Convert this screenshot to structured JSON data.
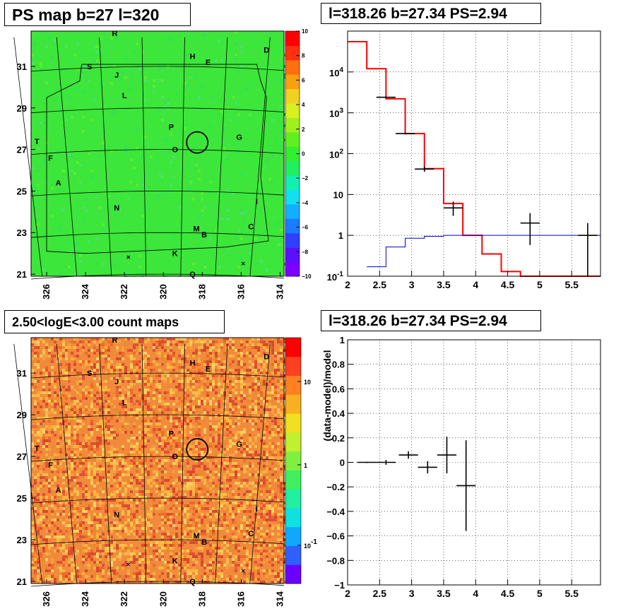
{
  "titles": {
    "top_left": "PS map b=27 l=320",
    "top_right": "l=318.26 b=27.34 PS=2.94",
    "bottom_left": "2.50<logE<3.00 count maps",
    "bottom_right": "l=318.26 b=27.34 PS=2.94"
  },
  "sources": [
    "R",
    "D",
    "H",
    "E",
    "S",
    "J",
    "L",
    "P",
    "G",
    "T",
    "O",
    "F",
    "A",
    "I",
    "N",
    "C",
    "M",
    "B",
    "K",
    "Q"
  ],
  "map_markers": [
    "×",
    "×"
  ],
  "chart_data": [
    {
      "type": "heatmap",
      "title": "PS map b=27 l=320",
      "x_ticks": [
        "326",
        "324",
        "322",
        "320",
        "318",
        "316",
        "314"
      ],
      "y_ticks": [
        "31",
        "29",
        "27",
        "25",
        "23",
        "21"
      ],
      "xlim": [
        326.8,
        313.8
      ],
      "ylim": [
        20.9,
        32.7
      ],
      "colorbar_ticks": [
        "10",
        "8",
        "6",
        "4",
        "2",
        "0",
        "−2",
        "−4",
        "−6",
        "−8",
        "−10"
      ],
      "colorbar_range": [
        -10,
        10
      ],
      "colorbar_colors": [
        "#7b00ff",
        "#5a10ff",
        "#3040ff",
        "#1a7cff",
        "#12b0ff",
        "#10e0f0",
        "#10f0b0",
        "#20f060",
        "#30f030",
        "#60f020",
        "#a0f020",
        "#d8f020",
        "#f0d020",
        "#f8a010",
        "#ff7010",
        "#ff3010",
        "#ff0000"
      ],
      "map_color": "#3de63a",
      "ps_circle": {
        "l": 318.26,
        "b": 27.34
      }
    },
    {
      "type": "line",
      "title": "l=318.26 b=27.34 PS=2.94",
      "x_ticks": [
        "2",
        "2.5",
        "3",
        "3.5",
        "4",
        "4.5",
        "5",
        "5.5"
      ],
      "y_ticks": [
        "10^-1",
        "1",
        "10",
        "10^2",
        "10^3",
        "10^4"
      ],
      "xlim": [
        2.0,
        5.95
      ],
      "ylim": [
        0.1,
        100000
      ],
      "ylog": true,
      "grid": true,
      "series": [
        {
          "color": "#ff0000",
          "bin_edges": [
            2.0,
            2.3,
            2.6,
            2.9,
            3.2,
            3.5,
            3.8,
            4.1,
            4.4,
            4.7,
            5.95
          ],
          "values": [
            55000,
            12000,
            2200,
            310,
            43,
            6,
            1,
            0.35,
            0.13,
            0.1
          ]
        },
        {
          "color": "#0000cc",
          "bin_edges": [
            2.3,
            2.6,
            2.9,
            3.2,
            3.5,
            3.8,
            5.95
          ],
          "values": [
            0.17,
            0.52,
            0.85,
            0.95,
            1.0,
            1.0
          ]
        }
      ],
      "points": [
        {
          "x": 2.6,
          "y": 2400,
          "xerr": 0.15,
          "ylo": 2300,
          "yhi": 2500
        },
        {
          "x": 2.9,
          "y": 310,
          "xerr": 0.15,
          "ylo": 295,
          "yhi": 325
        },
        {
          "x": 3.2,
          "y": 42,
          "xerr": 0.15,
          "ylo": 36,
          "yhi": 48
        },
        {
          "x": 3.65,
          "y": 4.7,
          "xerr": 0.15,
          "ylo": 3.0,
          "yhi": 6.7
        },
        {
          "x": 4.85,
          "y": 2.0,
          "xerr": 0.15,
          "ylo": 0.58,
          "yhi": 3.5
        },
        {
          "x": 5.75,
          "y": 1.0,
          "xerr": 0.15,
          "ylo": 0.1,
          "yhi": 2.0
        }
      ]
    },
    {
      "type": "heatmap",
      "title": "2.50<logE<3.00 count maps",
      "x_ticks": [
        "326",
        "324",
        "322",
        "320",
        "318",
        "316",
        "314"
      ],
      "y_ticks": [
        "31",
        "29",
        "27",
        "25",
        "23",
        "21"
      ],
      "xlim": [
        326.8,
        313.8
      ],
      "ylim": [
        20.9,
        32.7
      ],
      "colorbar_ticks": [
        "10",
        "1",
        "10^-1"
      ],
      "colorbar_colors": [
        "#6a00ff",
        "#3060ff",
        "#10a8ff",
        "#10e0e0",
        "#20f0a0",
        "#40f060",
        "#80f040",
        "#c0f030",
        "#f0e020",
        "#f8b020",
        "#ff8020",
        "#ff4020",
        "#ff0000"
      ],
      "map_color": "#f28a3c",
      "ps_circle": {
        "l": 318.26,
        "b": 27.34
      }
    },
    {
      "type": "scatter",
      "title": "l=318.26 b=27.34 PS=2.94",
      "ylabel": "(data-model)/model",
      "x_ticks": [
        "2",
        "2.5",
        "3",
        "3.5",
        "4",
        "4.5",
        "5",
        "5.5"
      ],
      "y_ticks": [
        "1",
        "0.8",
        "0.6",
        "0.4",
        "0.2",
        "0",
        "−0.2",
        "−0.4",
        "−0.6",
        "−0.8",
        "−1"
      ],
      "xlim": [
        2.0,
        5.95
      ],
      "ylim": [
        -1,
        1
      ],
      "grid": true,
      "points": [
        {
          "x": 2.3,
          "y": 0.0,
          "xerr": 0.15,
          "yerr": 0.005
        },
        {
          "x": 2.6,
          "y": 0.0,
          "xerr": 0.15,
          "yerr": 0.02
        },
        {
          "x": 2.95,
          "y": 0.06,
          "xerr": 0.15,
          "yerr": 0.03
        },
        {
          "x": 3.25,
          "y": -0.04,
          "xerr": 0.15,
          "yerr": 0.05
        },
        {
          "x": 3.55,
          "y": 0.06,
          "xerr": 0.15,
          "yerr": 0.15
        },
        {
          "x": 3.85,
          "y": -0.19,
          "xerr": 0.15,
          "yerr": 0.37
        }
      ]
    }
  ]
}
